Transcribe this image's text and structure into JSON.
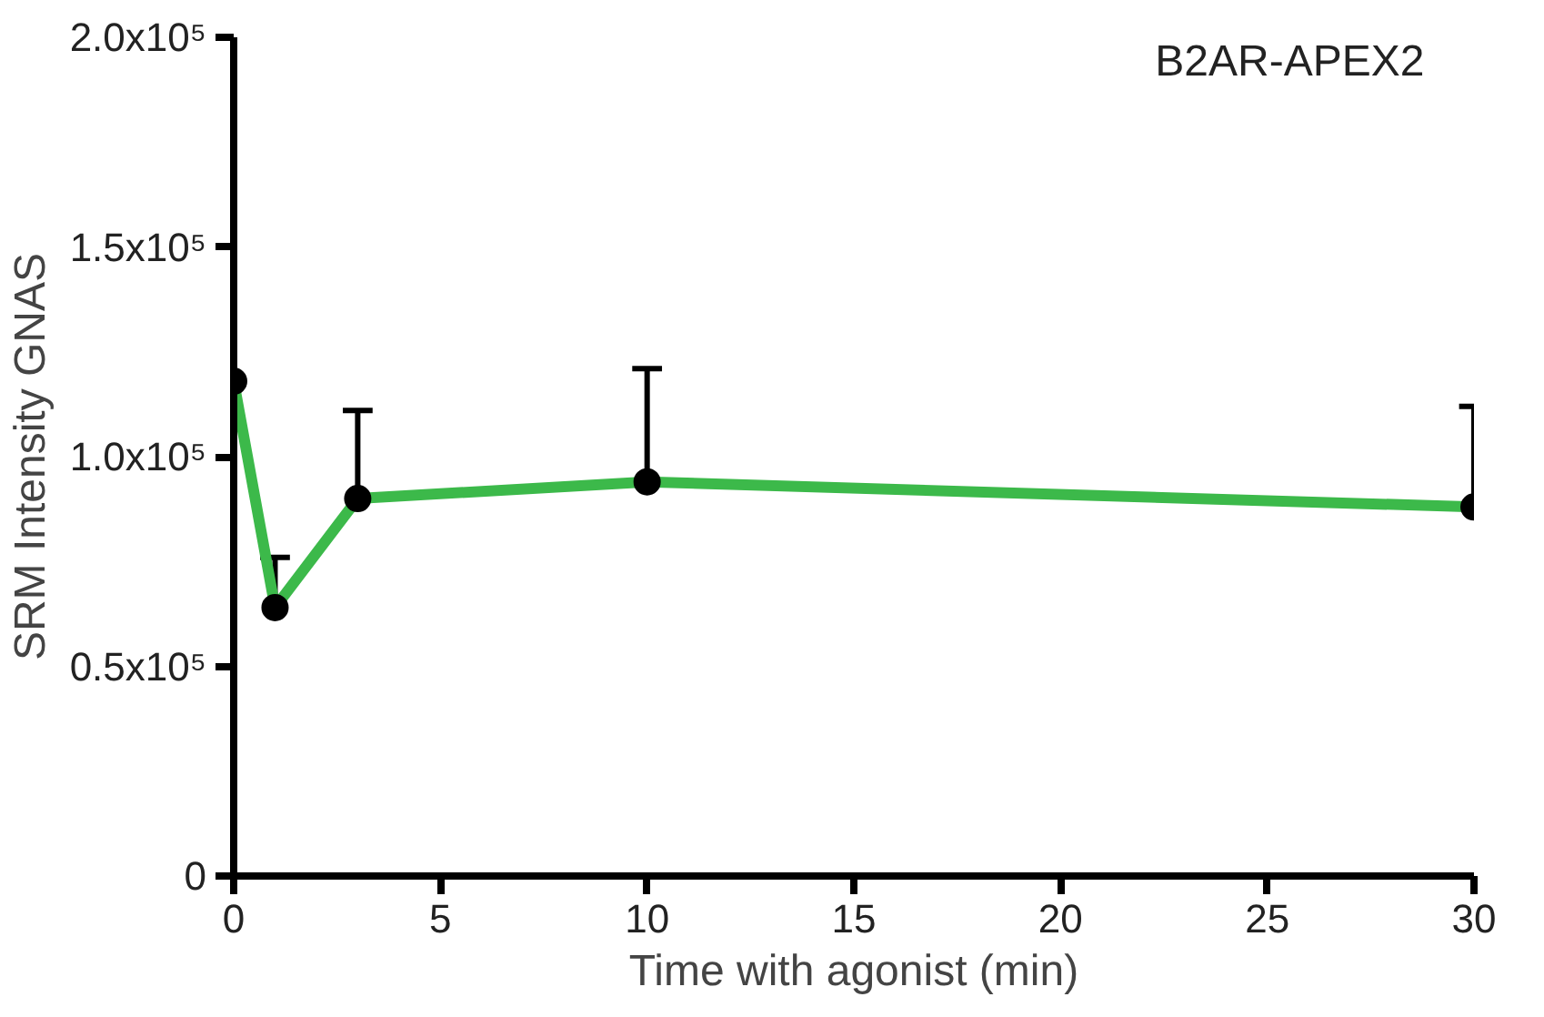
{
  "chart_data": {
    "type": "line",
    "title": "B2AR-APEX2",
    "xlabel": "Time with agonist (min)",
    "ylabel": "SRM Intensity GNAS",
    "x": [
      0,
      1,
      3,
      10,
      30
    ],
    "series": [
      {
        "color": "#3cb94a",
        "values": [
          118000,
          64000,
          90000,
          94000,
          88000
        ],
        "errors": [
          null,
          [
            64000,
            76000
          ],
          [
            90000,
            111000
          ],
          [
            94000,
            121000
          ],
          [
            88000,
            112000
          ]
        ]
      }
    ],
    "xlim": [
      0,
      30
    ],
    "xticks": [
      0,
      5,
      10,
      15,
      20,
      25,
      30
    ],
    "ylim": [
      0,
      200000
    ],
    "yticks": [
      {
        "value": 0,
        "label": "0"
      },
      {
        "value": 50000,
        "label": "0.5x10⁵"
      },
      {
        "value": 100000,
        "label": "1.0x10⁵"
      },
      {
        "value": 150000,
        "label": "1.5x10⁵"
      },
      {
        "value": 200000,
        "label": "2.0x10⁵"
      }
    ],
    "grid": false,
    "marker": "circle",
    "line_style": "solid"
  }
}
